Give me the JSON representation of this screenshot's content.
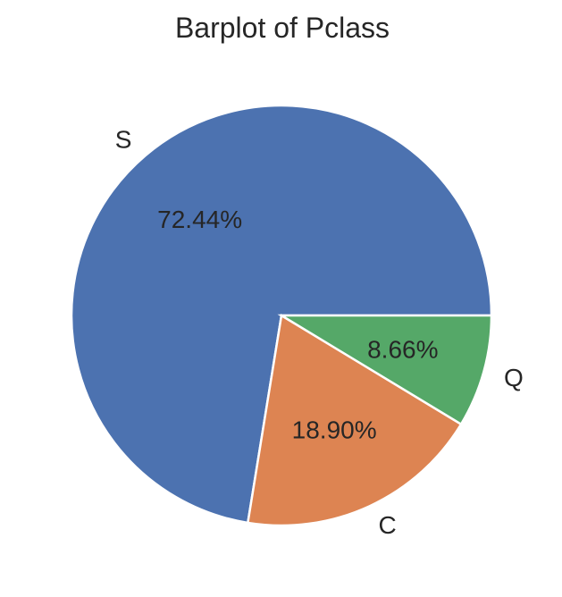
{
  "chart_data": {
    "type": "pie",
    "title": "Barplot of Pclass",
    "categories": [
      "S",
      "C",
      "Q"
    ],
    "values": [
      72.44,
      18.9,
      8.66
    ],
    "slices": [
      {
        "label": "S",
        "value": 72.44,
        "pct_label": "72.44%",
        "color": "#4C72B0"
      },
      {
        "label": "C",
        "value": 18.9,
        "pct_label": "18.90%",
        "color": "#DD8452"
      },
      {
        "label": "Q",
        "value": 8.66,
        "pct_label": "8.66%",
        "color": "#55A868"
      }
    ],
    "start_angle_deg": 0,
    "direction": "counterclockwise",
    "label_distance": 1.1,
    "pct_distance": 0.6,
    "edge_color": "#ffffff",
    "text_color": "#262626",
    "background": "#ffffff",
    "legend": "none"
  }
}
